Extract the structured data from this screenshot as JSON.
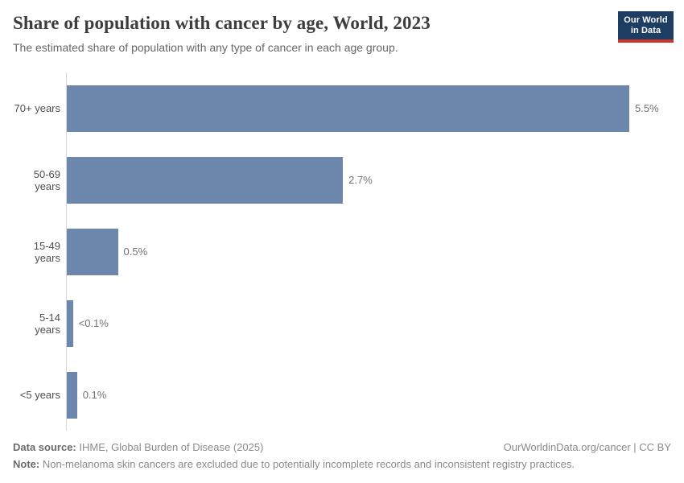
{
  "header": {
    "title": "Share of population with cancer by age, World, 2023",
    "subtitle": "The estimated share of population with any type of cancer in each age group.",
    "logo": {
      "line1": "Our World",
      "line2": "in Data"
    }
  },
  "chart_data": {
    "type": "bar",
    "orientation": "horizontal",
    "title": "Share of population with cancer by age, World, 2023",
    "categories": [
      "70+ years",
      "50-69 years",
      "15-49 years",
      "5-14 years",
      "<5 years"
    ],
    "values": [
      5.5,
      2.7,
      0.5,
      0.06,
      0.1
    ],
    "value_labels": [
      "5.5%",
      "2.7%",
      "0.5%",
      "<0.1%",
      "0.1%"
    ],
    "unit": "%",
    "xlim": [
      0,
      5.5
    ],
    "bar_color": "#6c86ac",
    "axis_line_color": "#d9d9d9",
    "grid": false,
    "legend": false
  },
  "footer": {
    "datasource_label": "Data source:",
    "datasource_text": " IHME, Global Burden of Disease (2025)",
    "link": "OurWorldinData.org/cancer | CC BY",
    "note_label": "Note:",
    "note_text": " Non-melanoma skin cancers are excluded due to potentially incomplete records and inconsistent registry practices."
  }
}
